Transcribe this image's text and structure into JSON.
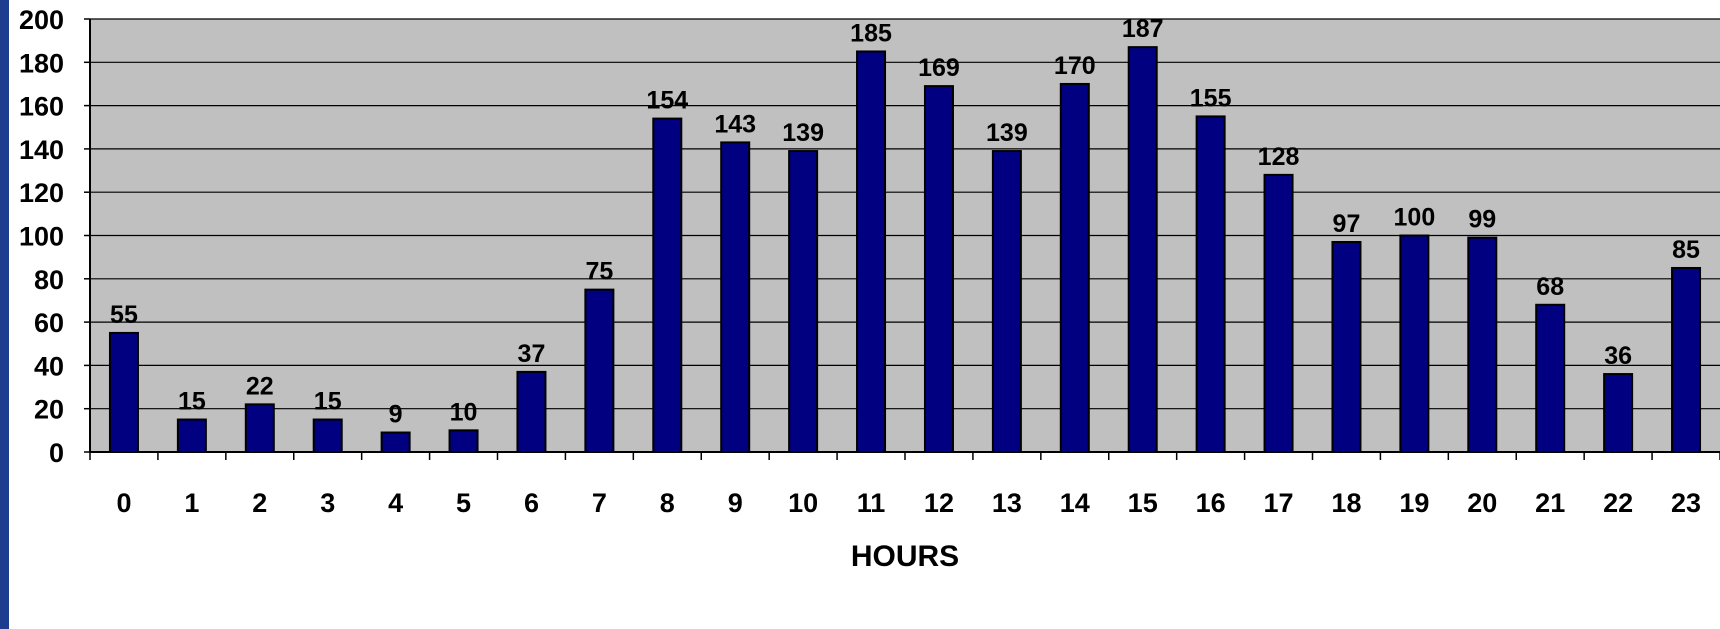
{
  "colors": {
    "plot_background": "#c0c0c0",
    "bar_fill": "#000080",
    "bar_stroke": "#000000",
    "gridline": "#000000",
    "frame_strip": "#1f3d8f"
  },
  "chart_data": {
    "type": "bar",
    "title": "",
    "xlabel": "HOURS",
    "ylabel": "",
    "categories": [
      "0",
      "1",
      "2",
      "3",
      "4",
      "5",
      "6",
      "7",
      "8",
      "9",
      "10",
      "11",
      "12",
      "13",
      "14",
      "15",
      "16",
      "17",
      "18",
      "19",
      "20",
      "21",
      "22",
      "23"
    ],
    "values": [
      55,
      15,
      22,
      15,
      9,
      10,
      37,
      75,
      154,
      143,
      139,
      185,
      169,
      139,
      170,
      187,
      155,
      128,
      97,
      100,
      99,
      68,
      36,
      85
    ],
    "ylim": [
      0,
      200
    ],
    "yticks": [
      0,
      20,
      40,
      60,
      80,
      100,
      120,
      140,
      160,
      180,
      200
    ],
    "grid": true,
    "legend": "none",
    "data_labels": true
  }
}
